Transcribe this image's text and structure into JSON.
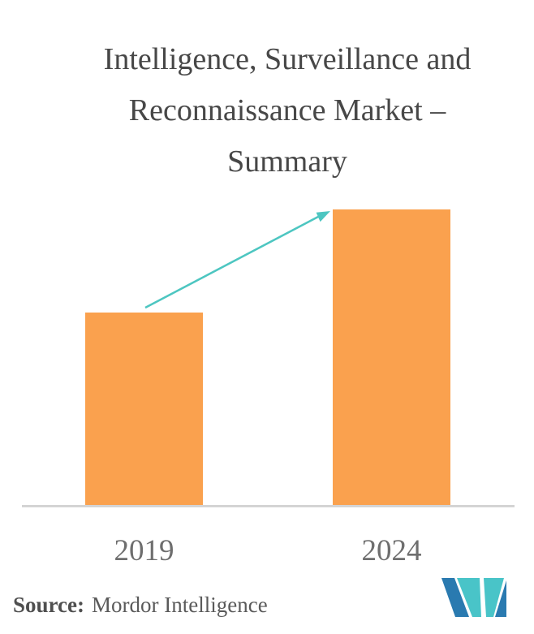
{
  "title": {
    "lines": [
      "Intelligence, Surveillance and",
      "Reconnaissance Market –",
      "Summary"
    ],
    "full_text": "Intelligence, Surveillance and Reconnaissance Market – Summary"
  },
  "chart_data": {
    "type": "bar",
    "categories": [
      "2019",
      "2024"
    ],
    "values": [
      0.65,
      1.0
    ],
    "values_note": "No numeric axis or data labels shown; values are relative bar heights (2024 bar ≈ 1.54× the 2019 bar).",
    "title": "Intelligence, Surveillance and Reconnaissance Market – Summary",
    "xlabel": "",
    "ylabel": "",
    "ylim": null,
    "grid": false,
    "legend": null,
    "annotations": [
      "upward growth arrow from top of 2019 bar to top of 2024 bar"
    ]
  },
  "x_axis": {
    "labels": [
      "2019",
      "2024"
    ]
  },
  "source": {
    "label": "Source:",
    "text": "Mordor Intelligence"
  },
  "logo": {
    "name": "mordor-intelligence-logo"
  },
  "icons": {
    "growth_arrow": "diagonal-up-right-arrow"
  },
  "colors": {
    "background": "#FFFFFF",
    "bar": "#FAA14E",
    "arrow": "#4DC6C1",
    "title_text": "#474747",
    "axis_label_text": "#6E6E6E",
    "source_text": "#5A5A5A",
    "baseline": "#D4D4D4",
    "logo_blue": "#2A7AB0",
    "logo_teal": "#49C4C8"
  }
}
